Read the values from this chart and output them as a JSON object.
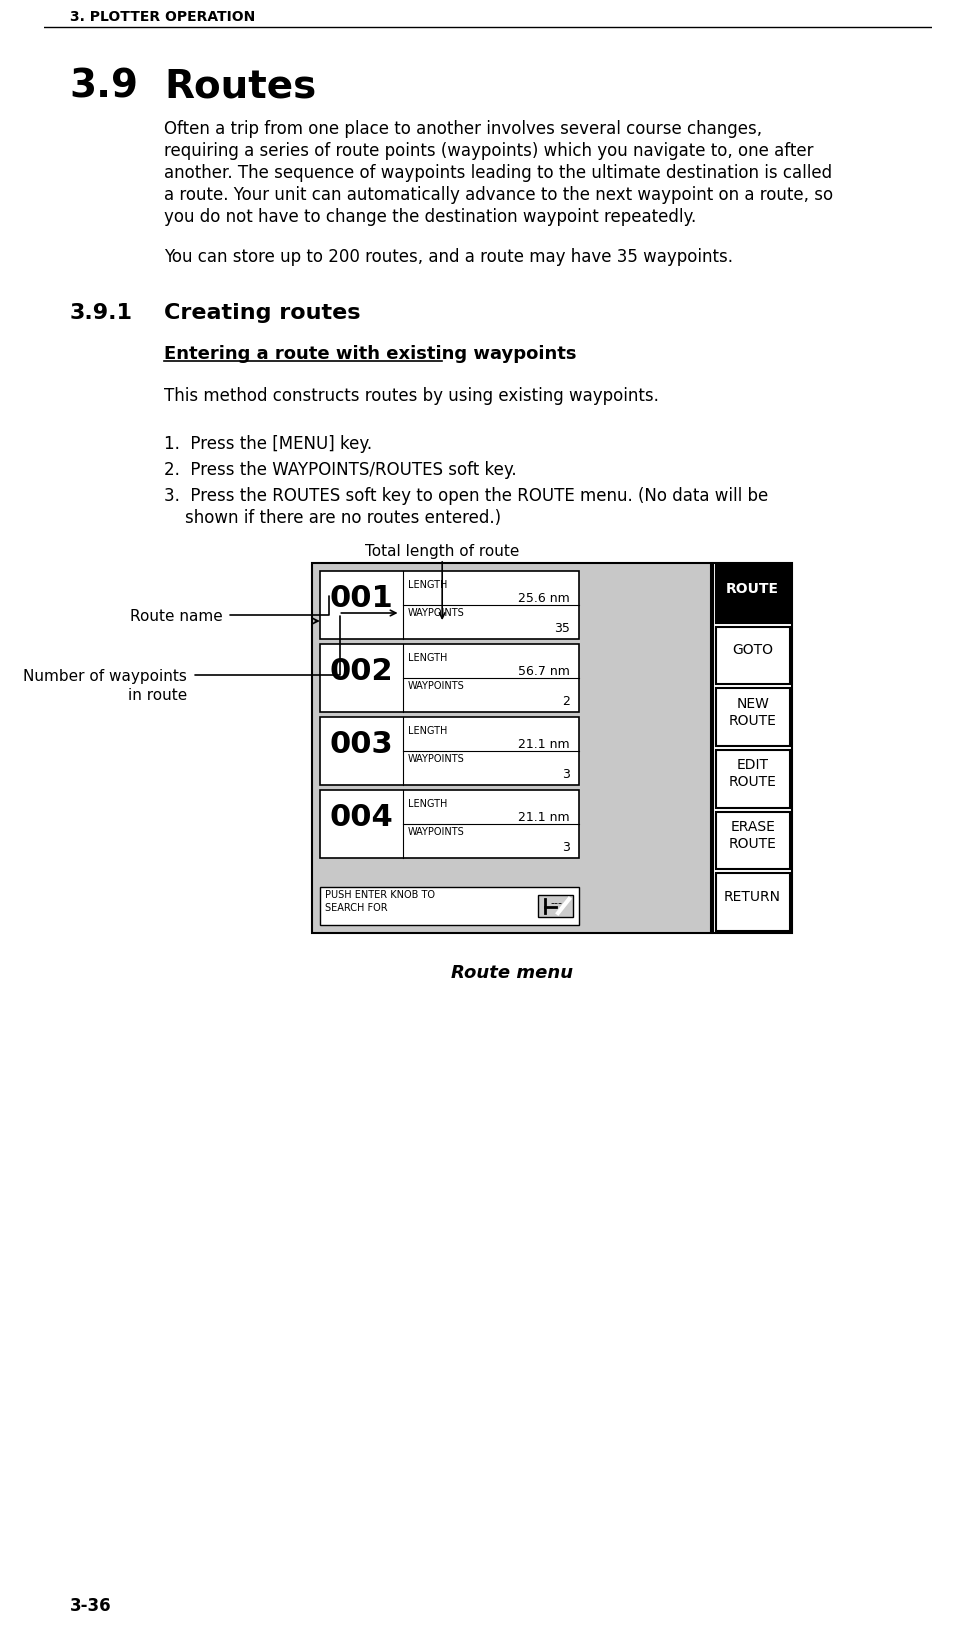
{
  "page_header": "3. PLOTTER OPERATION",
  "section_number": "3.9",
  "section_title": "Routes",
  "body_text": "Often a trip from one place to another involves several course changes, requiring a series of route points (waypoints) which you navigate to, one after another. The sequence of waypoints leading to the ultimate destination is called a route. Your unit can automatically advance to the next waypoint on a route, so you do not have to change the destination waypoint repeatedly.",
  "body_text2": "You can store up to 200 routes, and a route may have 35 waypoints.",
  "subsection_number": "3.9.1",
  "subsection_title": "Creating routes",
  "underline_heading": "Entering a route with existing waypoints",
  "method_text": "This method constructs routes by using existing waypoints.",
  "steps": [
    "Press the [MENU] key.",
    "Press the WAYPOINTS/ROUTES soft key.",
    "Press the ROUTES soft key to open the ROUTE menu. (No data will be\nshown if there are no routes entered.)"
  ],
  "annotation_total_length": "Total length of route",
  "annotation_route_name": "Route name",
  "annotation_waypoints": "Number of waypoints\nin route",
  "routes": [
    {
      "id": "001",
      "length": "25.6 nm",
      "waypoints": "35",
      "selected": true
    },
    {
      "id": "002",
      "length": "56.7 nm",
      "waypoints": "2",
      "selected": false
    },
    {
      "id": "003",
      "length": "21.1 nm",
      "waypoints": "3",
      "selected": false
    },
    {
      "id": "004",
      "length": "21.1 nm",
      "waypoints": "3",
      "selected": false
    }
  ],
  "soft_keys": [
    "ROUTE",
    "GOTO",
    "NEW\nROUTE",
    "EDIT\nROUTE",
    "ERASE\nROUTE",
    "RETURN"
  ],
  "push_enter_text": "PUSH ENTER KNOB TO\nSEARCH FOR",
  "figure_caption": "Route menu",
  "footer": "3-36",
  "bg_color": "#ffffff",
  "panel_bg": "#c8c8c8",
  "route_selected_bg": "#000000",
  "soft_key_bg": "#ffffff",
  "soft_key_selected_bg": "#000000",
  "text_color": "#000000"
}
